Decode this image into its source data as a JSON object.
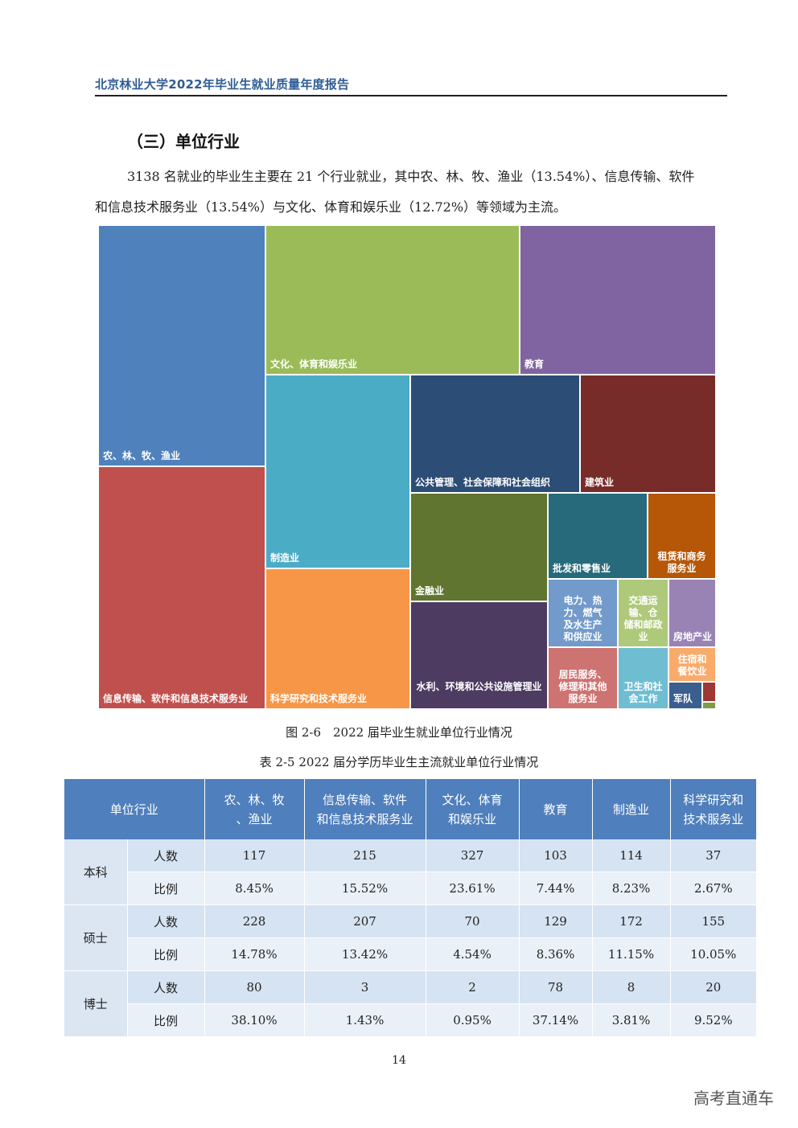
{
  "header": {
    "title": "北京林业大学2022年毕业生就业质量年度报告"
  },
  "section": {
    "heading": "（三）单位行业"
  },
  "intro": {
    "line1": "3138 名就业的毕业生主要在 21 个行业就业，其中农、林、牧、渔业（13.54%）、信息传输、软件",
    "line2": "和信息技术服务业（13.54%）与文化、体育和娱乐业（12.72%）等领域为主流。"
  },
  "chart_data": {
    "type": "treemap",
    "title": "图 2-6　2022 届毕业生就业单位行业情况",
    "items": [
      {
        "label": "农、林、牧、渔业",
        "color": "#4f81bd"
      },
      {
        "label": "信息传输、软件和信息技术服务业",
        "color": "#c0504d"
      },
      {
        "label": "文化、体育和娱乐业",
        "color": "#9bbb59"
      },
      {
        "label": "教育",
        "color": "#8064a2"
      },
      {
        "label": "制造业",
        "color": "#4bacc6"
      },
      {
        "label": "科学研究和技术服务业",
        "color": "#f79646"
      },
      {
        "label": "公共管理、社会保障和社会组织",
        "color": "#2c4d75"
      },
      {
        "label": "建筑业",
        "color": "#772c2a"
      },
      {
        "label": "金融业",
        "color": "#5f7530"
      },
      {
        "label": "水利、环境和公共设施管理业",
        "color": "#4d3b62"
      },
      {
        "label": "批发和零售业",
        "color": "#276a7c"
      },
      {
        "label": "租赁和商务服务业",
        "color": "#b65708"
      },
      {
        "label": "电力、热力、燃气及水生产和供应业",
        "color": "#729aca"
      },
      {
        "label": "交通运输、仓储和邮政业",
        "color": "#afc97a"
      },
      {
        "label": "房地产业",
        "color": "#9983b5"
      },
      {
        "label": "居民服务、修理和其他服务业",
        "color": "#cd7371"
      },
      {
        "label": "卫生和社会工作",
        "color": "#6fbdd1"
      },
      {
        "label": "住宿和餐饮业",
        "color": "#f9ab6b"
      },
      {
        "label": "军队",
        "color": "#3a5f8e"
      },
      {
        "label": "",
        "color": "#9f3734"
      },
      {
        "label": "",
        "color": "#7f9a48"
      }
    ]
  },
  "table": {
    "caption": "表 2-5 2022 届分学历毕业生主流就业单位行业情况",
    "headers": [
      "单位行业",
      "农、林、牧、渔业",
      "信息传输、软件和信息技术服务业",
      "文化、体育和娱乐业",
      "教育",
      "制造业",
      "科学研究和技术服务业"
    ],
    "groups": [
      {
        "degree": "本科",
        "rows": [
          {
            "metric": "人数",
            "values": [
              "117",
              "215",
              "327",
              "103",
              "114",
              "37"
            ]
          },
          {
            "metric": "比例",
            "values": [
              "8.45%",
              "15.52%",
              "23.61%",
              "7.44%",
              "8.23%",
              "2.67%"
            ]
          }
        ]
      },
      {
        "degree": "硕士",
        "rows": [
          {
            "metric": "人数",
            "values": [
              "228",
              "207",
              "70",
              "129",
              "172",
              "155"
            ]
          },
          {
            "metric": "比例",
            "values": [
              "14.78%",
              "13.42%",
              "4.54%",
              "8.36%",
              "11.15%",
              "10.05%"
            ]
          }
        ]
      },
      {
        "degree": "博士",
        "rows": [
          {
            "metric": "人数",
            "values": [
              "80",
              "3",
              "2",
              "78",
              "8",
              "20"
            ]
          },
          {
            "metric": "比例",
            "values": [
              "38.10%",
              "1.43%",
              "0.95%",
              "37.14%",
              "3.81%",
              "9.52%"
            ]
          }
        ]
      }
    ]
  },
  "footer": {
    "page_number": "14",
    "watermark": "高考直通车"
  }
}
